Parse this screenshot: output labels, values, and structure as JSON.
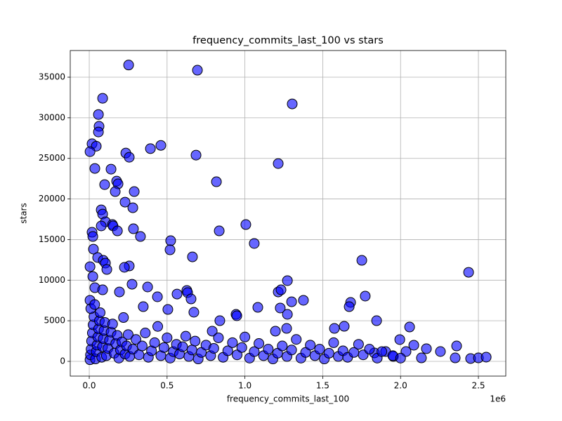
{
  "chart_data": {
    "type": "scatter",
    "title": "frequency_commits_last_100 vs stars",
    "xlabel": "frequency_commits_last_100",
    "ylabel": "stars",
    "x_offset_text": "1e6",
    "color": "#0000ff",
    "edge_color": "#000000",
    "alpha": 0.6,
    "grid": true,
    "xlim": [
      -122000,
      2676000
    ],
    "ylim": [
      -1815,
      38285
    ],
    "xticks": [
      {
        "value": 0,
        "label": "0.0"
      },
      {
        "value": 500000,
        "label": "0.5"
      },
      {
        "value": 1000000,
        "label": "1.0"
      },
      {
        "value": 1500000,
        "label": "1.5"
      },
      {
        "value": 2000000,
        "label": "2.0"
      },
      {
        "value": 2500000,
        "label": "2.5"
      }
    ],
    "yticks": [
      0,
      5000,
      10000,
      15000,
      20000,
      25000,
      30000,
      35000
    ],
    "x": [
      253000,
      695000,
      86000,
      1304000,
      59000,
      63000,
      59000,
      18000,
      45000,
      5000,
      460000,
      393000,
      235000,
      257000,
      686000,
      1214000,
      36000,
      140000,
      176000,
      185000,
      99000,
      817000,
      289000,
      167000,
      230000,
      280000,
      77000,
      86000,
      104000,
      149000,
      153000,
      77000,
      1006000,
      835000,
      181000,
      284000,
      18000,
      23000,
      329000,
      523000,
      1060000,
      27000,
      519000,
      663000,
      54000,
      90000,
      104000,
      1751000,
      2437000,
      5000,
      257000,
      113000,
      226000,
      23000,
      1273000,
      275000,
      375000,
      36000,
      86000,
      194000,
      627000,
      632000,
      564000,
      1214000,
      1232000,
      1773000,
      438000,
      654000,
      5000,
      1376000,
      1300000,
      1679000,
      1083000,
      1227000,
      1670000,
      347000,
      505000,
      672000,
      1273000,
      1846000,
      943000,
      948000,
      839000,
      2058000,
      1638000,
      1575000,
      1268000,
      790000,
      1196000,
      1995000,
      2360000,
      2085000,
      2166000,
      2256000,
      2351000,
      2450000,
      2500000,
      2550000,
      1832000,
      1904000,
      2035000,
      2134000,
      1954000,
      5000,
      8000,
      12000,
      15000,
      20000,
      25000,
      30000,
      10000,
      40000,
      45000,
      50000,
      55000,
      60000,
      65000,
      70000,
      35000,
      80000,
      85000,
      90000,
      95000,
      100000,
      110000,
      120000,
      130000,
      140000,
      150000,
      160000,
      170000,
      180000,
      190000,
      200000,
      210000,
      220000,
      230000,
      240000,
      250000,
      260000,
      280000,
      300000,
      320000,
      340000,
      360000,
      380000,
      400000,
      420000,
      440000,
      460000,
      480000,
      500000,
      520000,
      540000,
      560000,
      580000,
      600000,
      620000,
      640000,
      660000,
      680000,
      700000,
      720000,
      750000,
      780000,
      800000,
      830000,
      860000,
      890000,
      920000,
      950000,
      980000,
      1000000,
      1030000,
      1060000,
      1090000,
      1120000,
      1150000,
      1180000,
      1210000,
      1240000,
      1270000,
      1300000,
      1330000,
      1360000,
      1390000,
      1420000,
      1450000,
      1480000,
      1510000,
      1540000,
      1570000,
      1600000,
      1630000,
      1660000,
      1700000,
      1730000,
      1760000,
      1800000,
      1850000,
      1880000,
      1950000,
      2000000
    ],
    "values": [
      36500,
      35860,
      32400,
      31710,
      30400,
      28950,
      28250,
      26800,
      26500,
      25830,
      26600,
      26200,
      25660,
      25140,
      25400,
      24360,
      23760,
      23670,
      22200,
      21860,
      21770,
      22120,
      20910,
      20910,
      19610,
      18920,
      18660,
      18140,
      17190,
      16850,
      16680,
      16680,
      16850,
      16070,
      16070,
      16330,
      15900,
      15380,
      15380,
      14860,
      14520,
      13820,
      13740,
      12870,
      12790,
      12440,
      12100,
      12440,
      10970,
      11660,
      11750,
      11320,
      11580,
      10450,
      9940,
      9500,
      9160,
      9070,
      8810,
      8550,
      8730,
      8470,
      8290,
      8550,
      8810,
      8040,
      7950,
      7690,
      7520,
      7520,
      7340,
      7260,
      6650,
      6570,
      6740,
      6740,
      6390,
      6050,
      5790,
      5010,
      5790,
      5620,
      5010,
      4230,
      4320,
      4060,
      4060,
      3720,
      3720,
      2680,
      1900,
      1990,
      1560,
      1210,
      430,
      350,
      430,
      520,
      1040,
      1210,
      1210,
      430,
      600,
      200,
      800,
      1500,
      2500,
      3500,
      4500,
      5500,
      6500,
      300,
      1200,
      2000,
      3000,
      4000,
      5000,
      6000,
      7000,
      500,
      1800,
      2800,
      3800,
      4800,
      700,
      1600,
      2600,
      3600,
      4600,
      1000,
      2200,
      3200,
      400,
      1400,
      2400,
      5400,
      900,
      1900,
      3300,
      600,
      1500,
      2700,
      800,
      1900,
      3500,
      500,
      1300,
      2300,
      4300,
      700,
      1700,
      2900,
      400,
      1200,
      2100,
      900,
      1800,
      3100,
      600,
      1400,
      2500,
      300,
      1100,
      2000,
      700,
      1600,
      2900,
      500,
      1300,
      2300,
      800,
      1700,
      3000,
      400,
      1200,
      2200,
      700,
      1500,
      300,
      1000,
      1900,
      600,
      1400,
      2700,
      400,
      1100,
      2000,
      700,
      1500,
      300,
      1000,
      2300,
      600,
      1300,
      500,
      1100,
      2100,
      800,
      1500,
      400,
      1200,
      700,
      400
    ]
  }
}
